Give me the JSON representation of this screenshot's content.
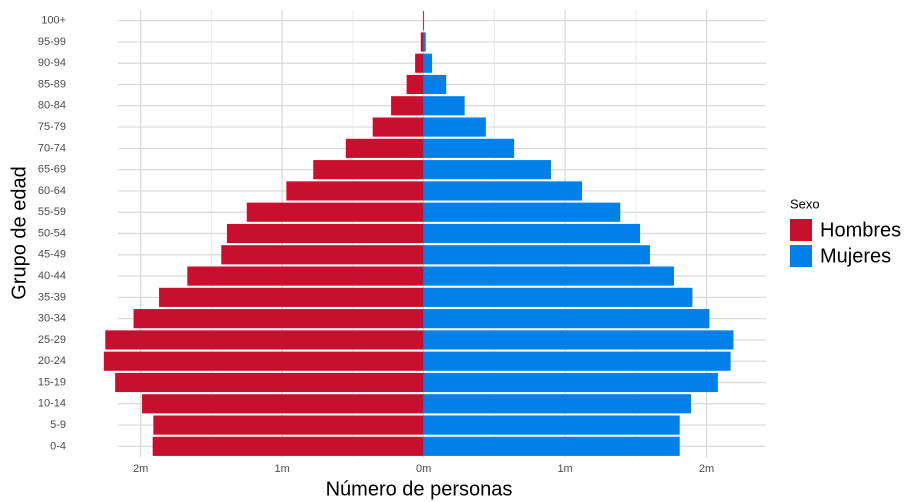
{
  "chart_data": {
    "type": "pyramid",
    "xlabel": "Número de personas",
    "ylabel": "Grupo de edad",
    "legend_title": "Sexo",
    "categories": [
      "0-4",
      "5-9",
      "10-14",
      "15-19",
      "20-24",
      "25-29",
      "30-34",
      "35-39",
      "40-44",
      "45-49",
      "50-54",
      "55-59",
      "60-64",
      "65-69",
      "70-74",
      "75-79",
      "80-84",
      "85-89",
      "90-94",
      "95-99",
      "100+"
    ],
    "series": [
      {
        "name": "Hombres",
        "color": "#c8102e",
        "values": [
          -1915000,
          -1910000,
          -1990000,
          -2180000,
          -2260000,
          -2250000,
          -2050000,
          -1870000,
          -1670000,
          -1430000,
          -1390000,
          -1250000,
          -970000,
          -780000,
          -550000,
          -360000,
          -230000,
          -120000,
          -60000,
          -20000,
          -5000
        ]
      },
      {
        "name": "Mujeres",
        "color": "#0080e8",
        "values": [
          1810000,
          1810000,
          1890000,
          2080000,
          2170000,
          2190000,
          2020000,
          1900000,
          1770000,
          1600000,
          1530000,
          1390000,
          1120000,
          900000,
          640000,
          440000,
          290000,
          160000,
          60000,
          15000,
          3000
        ]
      }
    ],
    "xlim": [
      -2160000,
      2420000
    ],
    "xticks": [
      {
        "value": -2000000,
        "label": "2m"
      },
      {
        "value": -1000000,
        "label": "1m"
      },
      {
        "value": 0,
        "label": "0m"
      },
      {
        "value": 1000000,
        "label": "1m"
      },
      {
        "value": 2000000,
        "label": "2m"
      }
    ],
    "xminor": [
      -1500000,
      -500000,
      500000,
      1500000
    ],
    "grid": true,
    "legend": "right"
  }
}
